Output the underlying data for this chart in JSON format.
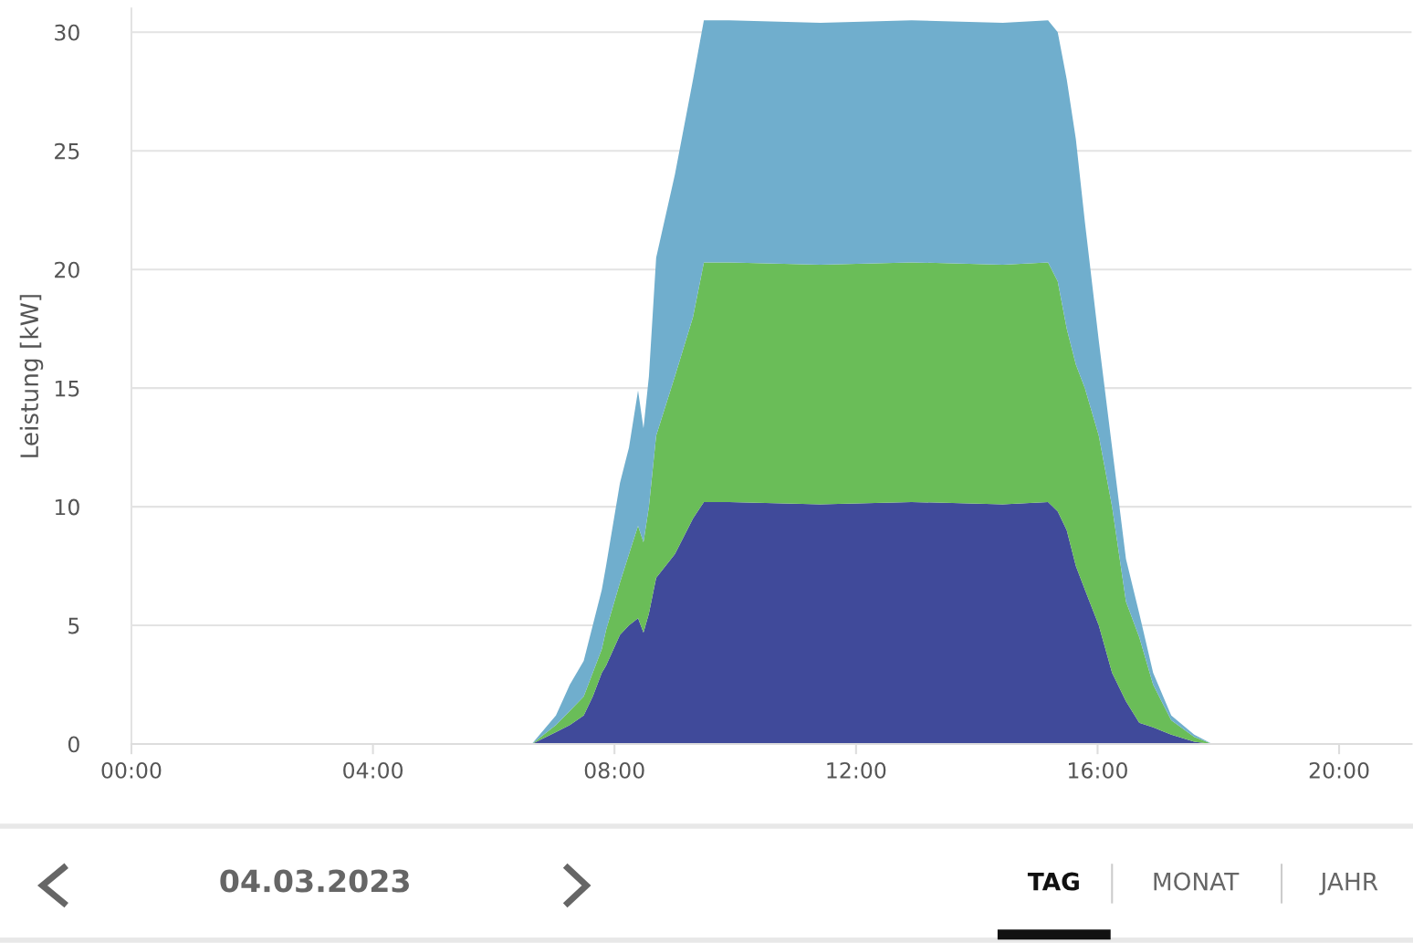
{
  "chart_data": {
    "type": "area",
    "stacked": true,
    "ylabel": "Leistung [kW]",
    "x": [
      6.63,
      7.03,
      7.26,
      7.49,
      7.64,
      7.79,
      7.86,
      8.09,
      8.24,
      8.39,
      8.48,
      8.57,
      8.69,
      9.0,
      9.3,
      9.48,
      9.9,
      11.41,
      12.92,
      14.43,
      15.18,
      15.34,
      15.49,
      15.64,
      15.79,
      16.02,
      16.24,
      16.47,
      16.69,
      16.92,
      17.22,
      17.6,
      17.9
    ],
    "series": [
      {
        "color": "#404a9a",
        "values": [
          0,
          0.5,
          0.8,
          1.2,
          2.0,
          3.0,
          3.3,
          4.6,
          5.0,
          5.3,
          4.7,
          5.5,
          7.0,
          8.0,
          9.5,
          10.2,
          10.2,
          10.1,
          10.2,
          10.1,
          10.2,
          9.8,
          9.0,
          7.5,
          6.5,
          5.0,
          3.0,
          1.8,
          0.9,
          0.7,
          0.4,
          0.1,
          0
        ]
      },
      {
        "color": "#6abd58",
        "values": [
          0,
          0.3,
          0.6,
          0.8,
          1.0,
          1.0,
          1.5,
          2.2,
          3.0,
          3.9,
          3.8,
          4.5,
          6.0,
          7.5,
          8.5,
          10.1,
          10.1,
          10.1,
          10.1,
          10.1,
          10.1,
          9.7,
          8.5,
          8.5,
          8.5,
          8.0,
          7.0,
          4.2,
          3.6,
          1.8,
          0.6,
          0.2,
          0
        ]
      },
      {
        "color": "#70aecd",
        "values": [
          0,
          0.4,
          1.1,
          1.5,
          2.0,
          2.5,
          2.7,
          4.2,
          4.5,
          5.7,
          4.8,
          5.5,
          7.5,
          8.5,
          10,
          10.2,
          10.2,
          10.2,
          10.2,
          10.2,
          10.2,
          10.5,
          10.5,
          9.5,
          7.0,
          4.0,
          2.5,
          1.8,
          1.0,
          0.5,
          0.2,
          0.1,
          0
        ]
      }
    ],
    "xlim": [
      0,
      21.2
    ],
    "xticks": [
      {
        "value": 0,
        "label": "00:00"
      },
      {
        "value": 4,
        "label": "04:00"
      },
      {
        "value": 8,
        "label": "08:00"
      },
      {
        "value": 12,
        "label": "12:00"
      },
      {
        "value": 16,
        "label": "16:00"
      },
      {
        "value": 20,
        "label": "20:00"
      }
    ],
    "ylim": [
      0,
      31
    ],
    "yticks": [
      0,
      5,
      10,
      15,
      20,
      25,
      30
    ],
    "grid": "y",
    "legend": false,
    "annotations": [
      "04.03.2023",
      "TAG",
      "MONAT",
      "JAHR"
    ]
  }
}
